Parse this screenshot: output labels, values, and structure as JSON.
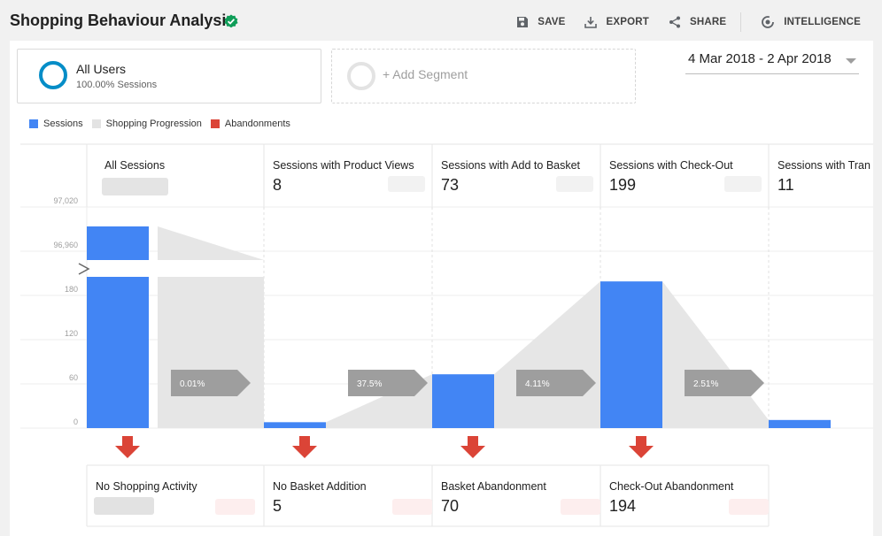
{
  "header": {
    "title": "Shopping Behaviour Analysis",
    "toolbar": {
      "save": "SAVE",
      "export": "EXPORT",
      "share": "SHARE",
      "intelligence": "INTELLIGENCE"
    }
  },
  "segments": [
    {
      "name": "All Users",
      "sub": "100.00% Sessions"
    },
    {
      "name": "+ Add Segment"
    }
  ],
  "date_range": "4 Mar 2018 - 2 Apr 2018",
  "colors": {
    "sessions": "#4285f4",
    "progression": "#e6e6e6",
    "abandonments": "#db4437",
    "arrow_box": "#9e9e9e"
  },
  "legend": [
    "Sessions",
    "Shopping Progression",
    "Abandonments"
  ],
  "chart_data": {
    "type": "bar",
    "y_ticks": [
      "0",
      "60",
      "120",
      "180",
      "96,960",
      "97,020"
    ],
    "y_break_between": [
      "180",
      "96,960"
    ],
    "stages": [
      {
        "label": "All Sessions",
        "value": null,
        "value_text": "",
        "rate": "0.01%"
      },
      {
        "label": "Sessions with Product Views",
        "value": 8,
        "value_text": "8",
        "rate": "37.5%"
      },
      {
        "label": "Sessions with Add to Basket",
        "value": 73,
        "value_text": "73",
        "rate": "4.11%"
      },
      {
        "label": "Sessions with Check-Out",
        "value": 199,
        "value_text": "199",
        "rate": "2.51%"
      },
      {
        "label": "Sessions with Tran",
        "value": 11,
        "value_text": "11",
        "rate": ""
      }
    ],
    "abandonments": [
      {
        "label": "No Shopping Activity",
        "value": null,
        "value_text": ""
      },
      {
        "label": "No Basket Addition",
        "value": 5,
        "value_text": "5"
      },
      {
        "label": "Basket Abandonment",
        "value": 70,
        "value_text": "70"
      },
      {
        "label": "Check-Out Abandonment",
        "value": 194,
        "value_text": "194"
      }
    ]
  }
}
